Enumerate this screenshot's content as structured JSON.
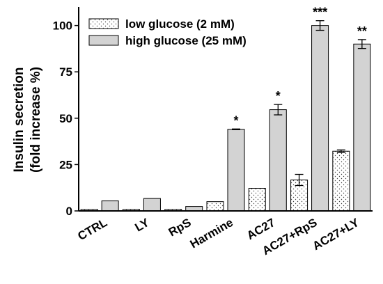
{
  "chart_data": {
    "type": "bar",
    "title": "",
    "xlabel": "",
    "ylabel": "Insulin secretion",
    "ylabel_line2": "(fold increase %)",
    "ylim": [
      0,
      110
    ],
    "yticks": [
      0,
      25,
      50,
      75,
      100
    ],
    "categories": [
      "CTRL",
      "LY",
      "RpS",
      "Harmine",
      "AC27",
      "AC27+RpS",
      "AC27+LY"
    ],
    "series": [
      {
        "name": "low glucose (2 mM)",
        "values": [
          0.8,
          0.8,
          0.8,
          5,
          12.2,
          16.7,
          32.2
        ],
        "errors": [
          0,
          0,
          0,
          0,
          0,
          3,
          0.7
        ],
        "pattern": "dots",
        "color": "#ffffff"
      },
      {
        "name": "high glucose (25 mM)",
        "values": [
          5.4,
          6.7,
          2.4,
          44,
          54.6,
          100,
          90
        ],
        "errors": [
          0,
          0,
          0,
          0.2,
          2.8,
          2.6,
          2.4
        ],
        "pattern": "solid",
        "color": "#d3d3d3"
      }
    ],
    "annotations": [
      "",
      "",
      "",
      "*",
      "*",
      "***",
      "**"
    ],
    "legend": {
      "placement": "top-left"
    },
    "grid": false
  }
}
